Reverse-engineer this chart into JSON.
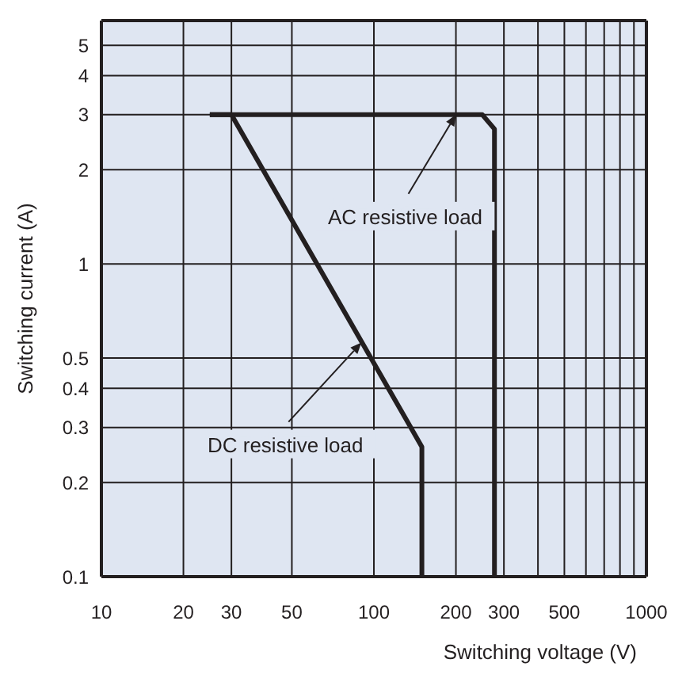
{
  "chart_data": {
    "type": "line",
    "xlabel": "Switching voltage (V)",
    "ylabel": "Switching current (A)",
    "log": "xy",
    "grid": true,
    "marker": "none",
    "line_style": "solid",
    "xlim": [
      10,
      1000
    ],
    "xticks": [
      10,
      20,
      30,
      50,
      100,
      200,
      300,
      {
        "value": 400,
        "label": null
      },
      500,
      {
        "value": 600,
        "label": null
      },
      {
        "value": 700,
        "label": null
      },
      {
        "value": 800,
        "label": null
      },
      {
        "value": 900,
        "label": null
      },
      1000
    ],
    "ylim": [
      0.1,
      6
    ],
    "yticks": [
      0.1,
      0.2,
      0.3,
      0.4,
      0.5,
      1,
      2,
      3,
      4,
      5
    ],
    "series": [
      {
        "color": "#231f20",
        "x": [
          25,
          250,
          277,
          277
        ],
        "values": [
          3,
          3,
          2.7,
          0.1
        ]
      },
      {
        "color": "#231f20",
        "x": [
          25,
          30,
          150,
          150
        ],
        "values": [
          3,
          3,
          0.26,
          0.1
        ]
      }
    ],
    "annotations": [
      {
        "text": "AC resistive load",
        "x": 200,
        "y": 3
      },
      {
        "text": "DC resistive load",
        "x": 90,
        "y": 0.56
      }
    ]
  }
}
